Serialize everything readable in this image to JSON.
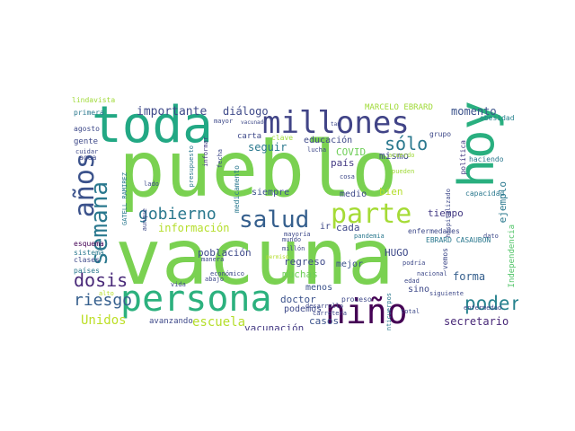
{
  "cloud": {
    "words": [
      {
        "text": "vacuna",
        "color": "#7ad151"
      },
      {
        "text": "pueblo",
        "color": "#7ad151"
      },
      {
        "text": "toda",
        "color": "#22a884"
      },
      {
        "text": "persona",
        "color": "#2cb17e"
      },
      {
        "text": "millones",
        "color": "#414487"
      },
      {
        "text": "hoy",
        "color": "#29af7f"
      },
      {
        "text": "niño",
        "color": "#440154"
      },
      {
        "text": "años",
        "color": "#3b528b"
      },
      {
        "text": "semana",
        "color": "#2a788e"
      },
      {
        "text": "salud",
        "color": "#355f8d"
      },
      {
        "text": "parte",
        "color": "#a5db36"
      },
      {
        "text": "gobierno",
        "color": "#2a788e"
      },
      {
        "text": "poder",
        "color": "#26828e"
      },
      {
        "text": "dosis",
        "color": "#482878"
      },
      {
        "text": "riesgo",
        "color": "#355f8d"
      },
      {
        "text": "sólo",
        "color": "#2a788e"
      },
      {
        "text": "escuela",
        "color": "#b5de2b"
      },
      {
        "text": "Unidos",
        "color": "#bddf26"
      },
      {
        "text": "importante",
        "color": "#3e4989"
      },
      {
        "text": "momento",
        "color": "#3b528b"
      },
      {
        "text": "secretario",
        "color": "#482878"
      },
      {
        "text": "vacunación",
        "color": "#443a83"
      },
      {
        "text": "diálogo",
        "color": "#3e4989"
      },
      {
        "text": "seguir",
        "color": "#2a788e"
      },
      {
        "text": "información",
        "color": "#b5de2b"
      },
      {
        "text": "población",
        "color": "#3e4989"
      },
      {
        "text": "forma",
        "color": "#355f8d"
      },
      {
        "text": "doctor",
        "color": "#3b528b"
      },
      {
        "text": "regreso",
        "color": "#3e4989"
      },
      {
        "text": "tiempo",
        "color": "#443a83"
      },
      {
        "text": "mejor",
        "color": "#3b528b"
      },
      {
        "text": "casos",
        "color": "#3b528b"
      },
      {
        "text": "cada",
        "color": "#3e4989"
      },
      {
        "text": "ejemplo",
        "color": "#2a788e"
      },
      {
        "text": "MARCELO EBRARD",
        "color": "#a0da39"
      },
      {
        "text": "educación",
        "color": "#3e4989"
      },
      {
        "text": "COVID",
        "color": "#6ece58"
      },
      {
        "text": "país",
        "color": "#443a83"
      },
      {
        "text": "mismo",
        "color": "#3e4989"
      },
      {
        "text": "siempre",
        "color": "#3b528b"
      },
      {
        "text": "medio",
        "color": "#3e4989"
      },
      {
        "text": "bien",
        "color": "#b5de2b"
      },
      {
        "text": "HUGO",
        "color": "#3e4989"
      },
      {
        "text": "muchas",
        "color": "#6ece58"
      },
      {
        "text": "podemos",
        "color": "#3e4989"
      },
      {
        "text": "menos",
        "color": "#3b528b"
      },
      {
        "text": "sino",
        "color": "#3e4989"
      },
      {
        "text": "carta",
        "color": "#3e4989"
      },
      {
        "text": "obesidad",
        "color": "#26828e"
      },
      {
        "text": "política",
        "color": "#443a83"
      },
      {
        "text": "Independencia",
        "color": "#52c569"
      },
      {
        "text": "capacidad",
        "color": "#2a788e"
      },
      {
        "text": "ir",
        "color": "#3e4989"
      },
      {
        "text": "gente",
        "color": "#3e4989"
      },
      {
        "text": "clases",
        "color": "#3e4989"
      },
      {
        "text": "países",
        "color": "#2a788e"
      },
      {
        "text": "esquema",
        "color": "#440154"
      },
      {
        "text": "sistema",
        "color": "#2a788e"
      },
      {
        "text": "agosto",
        "color": "#3e4989"
      },
      {
        "text": "cuidar",
        "color": "#3e4989"
      },
      {
        "text": "agua",
        "color": "#3e4989"
      },
      {
        "text": "primera",
        "color": "#2a788e"
      },
      {
        "text": "GATELL RAMIREZ",
        "color": "#2a788e"
      },
      {
        "text": "lado",
        "color": "#3e4989"
      },
      {
        "text": "aunque",
        "color": "#3e4989"
      },
      {
        "text": "presupuesto",
        "color": "#2a788e"
      },
      {
        "text": "informar",
        "color": "#443a83"
      },
      {
        "text": "fecha",
        "color": "#3e4989"
      },
      {
        "text": "mayor",
        "color": "#3e4989"
      },
      {
        "text": "vacunado",
        "color": "#3e4989"
      },
      {
        "text": "medicamento",
        "color": "#2a788e"
      },
      {
        "text": "clave",
        "color": "#a0da39"
      },
      {
        "text": "lucha",
        "color": "#3e4989"
      },
      {
        "text": "tan",
        "color": "#3e4989"
      },
      {
        "text": "cosa",
        "color": "#3e4989"
      },
      {
        "text": "grupo",
        "color": "#3e4989"
      },
      {
        "text": "acuerdo",
        "color": "#a0da39"
      },
      {
        "text": "pueden",
        "color": "#a0da39"
      },
      {
        "text": "haciendo",
        "color": "#2a788e"
      },
      {
        "text": "hospitalizado",
        "color": "#3e4989"
      },
      {
        "text": "dato",
        "color": "#3e4989"
      },
      {
        "text": "enfermedades",
        "color": "#3e4989"
      },
      {
        "text": "EBRARD CASAUBON",
        "color": "#2a788e"
      },
      {
        "text": "vemos",
        "color": "#3e4989"
      },
      {
        "text": "nacional",
        "color": "#3e4989"
      },
      {
        "text": "podría",
        "color": "#3e4989"
      },
      {
        "text": "edad",
        "color": "#3e4989"
      },
      {
        "text": "total",
        "color": "#3e4989"
      },
      {
        "text": "siguiente",
        "color": "#3e4989"
      },
      {
        "text": "enfermedad",
        "color": "#3e4989"
      },
      {
        "text": "anticuerpos",
        "color": "#2a788e"
      },
      {
        "text": "proceso",
        "color": "#3e4989"
      },
      {
        "text": "carretera",
        "color": "#3e4989"
      },
      {
        "text": "desarrollo",
        "color": "#3e4989"
      },
      {
        "text": "digo",
        "color": "#3e4989"
      },
      {
        "text": "millón",
        "color": "#3e4989"
      },
      {
        "text": "mundo",
        "color": "#3e4989"
      },
      {
        "text": "mayoría",
        "color": "#3e4989"
      },
      {
        "text": "permiso",
        "color": "#b5de2b"
      },
      {
        "text": "manera",
        "color": "#3e4989"
      },
      {
        "text": "económico",
        "color": "#3e4989"
      },
      {
        "text": "abajo",
        "color": "#3e4989"
      },
      {
        "text": "vida",
        "color": "#3e4989"
      },
      {
        "text": "alto",
        "color": "#b5de2b"
      },
      {
        "text": "avanzando",
        "color": "#3e4989"
      },
      {
        "text": "pandemia",
        "color": "#2a788e"
      },
      {
        "text": "lindavista",
        "color": "#a0da39"
      }
    ]
  }
}
